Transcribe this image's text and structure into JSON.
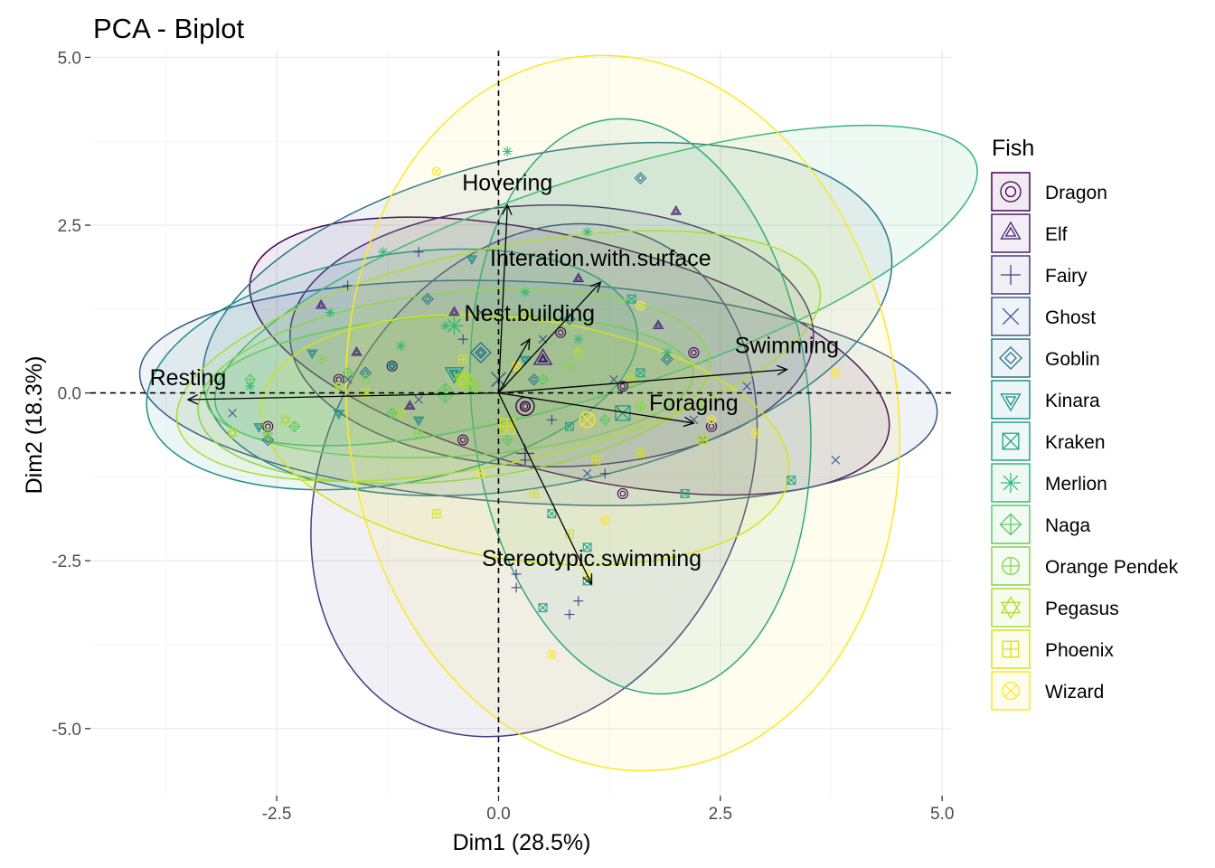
{
  "chart_data": {
    "type": "scatter",
    "title": "PCA - Biplot",
    "xlabel": "Dim1 (28.5%)",
    "ylabel": "Dim2 (18.3%)",
    "xlim": [
      -4.6,
      5.1
    ],
    "ylim": [
      -6.0,
      5.1
    ],
    "xticks": [
      -2.5,
      0.0,
      2.5,
      5.0
    ],
    "xtick_labels": [
      "-2.5",
      "0.0",
      "2.5",
      "5.0"
    ],
    "yticks": [
      -5.0,
      -2.5,
      0.0,
      2.5,
      5.0
    ],
    "ytick_labels": [
      "-5.0",
      "-2.5",
      "0.0",
      "2.5",
      "5.0"
    ],
    "grid": true,
    "reference_lines": {
      "x": 0,
      "y": 0,
      "style": "dashed"
    },
    "legend": {
      "title": "Fish",
      "placement": "right"
    },
    "variables": [
      {
        "name": "Resting",
        "x": -3.5,
        "y": -0.1
      },
      {
        "name": "Hovering",
        "x": 0.1,
        "y": 2.8
      },
      {
        "name": "Interation.with.surface",
        "x": 1.15,
        "y": 1.65
      },
      {
        "name": "Nest.building",
        "x": 0.35,
        "y": 0.8
      },
      {
        "name": "Swimming",
        "x": 3.25,
        "y": 0.35
      },
      {
        "name": "Foraging",
        "x": 2.2,
        "y": -0.45
      },
      {
        "name": "Stereotypic.swimming",
        "x": 1.05,
        "y": -2.85
      }
    ],
    "series": [
      {
        "name": "Dragon",
        "color": "#440154",
        "shape": "circle-in-circle",
        "ellipse": {
          "cx": 0.8,
          "cy": 0.55,
          "rx": 3.7,
          "ry": 1.75,
          "angle": -14
        },
        "centroid": [
          0.3,
          -0.2
        ],
        "points": [
          [
            -2.6,
            -0.5
          ],
          [
            -1.2,
            0.4
          ],
          [
            0.3,
            -0.2
          ],
          [
            1.4,
            0.1
          ],
          [
            2.4,
            -0.5
          ],
          [
            1.4,
            -1.5
          ],
          [
            0.7,
            0.9
          ],
          [
            -0.4,
            -0.7
          ],
          [
            2.2,
            0.6
          ],
          [
            -1.8,
            0.2
          ]
        ]
      },
      {
        "name": "Elf",
        "color": "#482173",
        "shape": "triangle-in-triangle",
        "ellipse": {
          "cx": 0.6,
          "cy": 0.85,
          "rx": 2.95,
          "ry": 1.95,
          "angle": 0
        },
        "centroid": [
          0.5,
          0.5
        ],
        "points": [
          [
            -1.6,
            0.6
          ],
          [
            -0.5,
            1.2
          ],
          [
            0.5,
            0.5
          ],
          [
            1.8,
            1.0
          ],
          [
            2.0,
            2.7
          ],
          [
            -1.0,
            -0.2
          ],
          [
            0.9,
            1.7
          ],
          [
            -2.0,
            1.3
          ]
        ]
      },
      {
        "name": "Fairy",
        "color": "#433E85",
        "shape": "plus",
        "ellipse": {
          "cx": 0.4,
          "cy": -1.3,
          "rx": 2.35,
          "ry": 4.0,
          "angle": -28
        },
        "centroid": [
          0.3,
          -0.9
        ],
        "points": [
          [
            0.2,
            -2.7
          ],
          [
            0.2,
            -2.9
          ],
          [
            0.9,
            -3.1
          ],
          [
            0.8,
            -3.3
          ],
          [
            -1.7,
            1.6
          ],
          [
            -0.4,
            0.8
          ],
          [
            0.6,
            -0.4
          ],
          [
            -2.6,
            -0.6
          ],
          [
            0.3,
            -1.0
          ],
          [
            1.2,
            -1.2
          ],
          [
            -0.9,
            2.1
          ]
        ]
      },
      {
        "name": "Ghost",
        "color": "#38598C",
        "shape": "x",
        "ellipse": {
          "cx": 0.45,
          "cy": 0.0,
          "rx": 4.5,
          "ry": 1.65,
          "angle": -3
        },
        "centroid": [
          0.0,
          0.2
        ],
        "points": [
          [
            3.8,
            -1.0
          ],
          [
            -3.0,
            -0.3
          ],
          [
            -1.7,
            0.2
          ],
          [
            0.5,
            0.8
          ],
          [
            2.2,
            -0.4
          ],
          [
            1.3,
            0.2
          ],
          [
            -0.9,
            -0.1
          ],
          [
            2.8,
            0.1
          ],
          [
            -0.2,
            1.2
          ],
          [
            1.0,
            -1.2
          ]
        ]
      },
      {
        "name": "Goblin",
        "color": "#2B748E",
        "shape": "diamond-in-diamond",
        "ellipse": {
          "cx": 0.55,
          "cy": 1.1,
          "rx": 3.95,
          "ry": 2.45,
          "angle": 12
        },
        "centroid": [
          -0.2,
          0.6
        ],
        "points": [
          [
            1.6,
            3.2
          ],
          [
            -1.5,
            0.3
          ],
          [
            -0.2,
            0.6
          ],
          [
            0.8,
            1.1
          ],
          [
            -2.6,
            -0.7
          ],
          [
            0.4,
            0.2
          ],
          [
            -0.8,
            1.4
          ],
          [
            1.9,
            0.5
          ]
        ]
      },
      {
        "name": "Kinara",
        "color": "#1F8F8A",
        "shape": "triangle-down-in-triangle",
        "ellipse": {
          "cx": -1.2,
          "cy": 0.35,
          "rx": 2.8,
          "ry": 1.7,
          "angle": 10
        },
        "centroid": [
          -0.5,
          0.3
        ],
        "points": [
          [
            -0.3,
            2.0
          ],
          [
            -1.2,
            0.4
          ],
          [
            -2.7,
            -0.5
          ],
          [
            -0.5,
            0.3
          ],
          [
            -1.8,
            -0.3
          ],
          [
            0.3,
            0.5
          ],
          [
            -2.1,
            0.6
          ],
          [
            -0.9,
            -0.4
          ]
        ]
      },
      {
        "name": "Kraken",
        "color": "#20A386",
        "shape": "square-x",
        "ellipse": {
          "cx": 1.6,
          "cy": -0.2,
          "rx": 1.9,
          "ry": 4.3,
          "angle": 6
        },
        "centroid": [
          1.4,
          -0.3
        ],
        "points": [
          [
            1.0,
            -2.8
          ],
          [
            0.5,
            -3.2
          ],
          [
            1.0,
            -2.3
          ],
          [
            3.3,
            -1.3
          ],
          [
            1.5,
            1.4
          ],
          [
            2.1,
            -1.5
          ],
          [
            0.8,
            -0.5
          ],
          [
            1.6,
            0.3
          ],
          [
            2.3,
            -0.7
          ],
          [
            0.6,
            -1.8
          ]
        ]
      },
      {
        "name": "Merlion",
        "color": "#35B779",
        "shape": "asterisk",
        "ellipse": {
          "cx": 1.1,
          "cy": 1.6,
          "rx": 4.5,
          "ry": 1.6,
          "angle": 18
        },
        "centroid": [
          -0.5,
          1.0
        ],
        "points": [
          [
            0.1,
            3.6
          ],
          [
            1.0,
            2.4
          ],
          [
            -1.3,
            2.1
          ],
          [
            -1.9,
            1.2
          ],
          [
            -0.6,
            1.0
          ],
          [
            0.9,
            0.8
          ],
          [
            -2.8,
            0.1
          ],
          [
            1.9,
            0.6
          ],
          [
            -1.1,
            0.7
          ],
          [
            0.3,
            1.5
          ]
        ]
      },
      {
        "name": "Naga",
        "color": "#5DC962",
        "shape": "diamond-plus",
        "ellipse": {
          "cx": -0.55,
          "cy": 0.1,
          "rx": 2.75,
          "ry": 1.05,
          "angle": 3
        },
        "centroid": [
          -0.6,
          0.0
        ],
        "points": [
          [
            -1.2,
            -0.3
          ],
          [
            -2.3,
            -0.5
          ],
          [
            -0.6,
            0.0
          ],
          [
            0.5,
            0.2
          ],
          [
            1.2,
            -0.4
          ],
          [
            -1.7,
            0.3
          ],
          [
            0.1,
            -0.7
          ],
          [
            -2.8,
            0.2
          ]
        ]
      },
      {
        "name": "Orange Pendek",
        "color": "#85D54A",
        "shape": "circle-plus",
        "ellipse": {
          "cx": -0.5,
          "cy": 0.1,
          "rx": 2.9,
          "ry": 1.4,
          "angle": 6
        },
        "centroid": [
          -0.3,
          0.1
        ],
        "points": [
          [
            -2.6,
            -0.6
          ],
          [
            -1.5,
            0.2
          ],
          [
            -0.3,
            0.1
          ],
          [
            0.8,
            0.4
          ],
          [
            1.6,
            -0.2
          ],
          [
            -0.9,
            -0.6
          ],
          [
            2.3,
            -0.2
          ],
          [
            -2.0,
            0.5
          ]
        ]
      },
      {
        "name": "Pegasus",
        "color": "#AADC32",
        "shape": "star-of-david",
        "ellipse": {
          "cx": 0.0,
          "cy": 0.55,
          "rx": 3.7,
          "ry": 1.6,
          "angle": 12
        },
        "centroid": [
          -0.4,
          0.2
        ],
        "points": [
          [
            -3.0,
            -0.6
          ],
          [
            -1.8,
            0.1
          ],
          [
            -0.4,
            0.2
          ],
          [
            0.9,
            0.6
          ],
          [
            -2.4,
            -0.4
          ],
          [
            0.3,
            1.2
          ],
          [
            -1.1,
            -0.3
          ],
          [
            1.5,
            0.2
          ]
        ]
      },
      {
        "name": "Phoenix",
        "color": "#D5E21A",
        "shape": "square-plus",
        "ellipse": {
          "cx": 0.3,
          "cy": -0.7,
          "rx": 3.0,
          "ry": 1.8,
          "angle": -8
        },
        "centroid": [
          0.1,
          -0.5
        ],
        "points": [
          [
            0.4,
            -1.5
          ],
          [
            1.1,
            -1.0
          ],
          [
            -0.7,
            -1.8
          ],
          [
            0.1,
            -0.5
          ],
          [
            2.3,
            -0.7
          ],
          [
            1.6,
            -0.9
          ],
          [
            -1.5,
            0.0
          ],
          [
            0.8,
            -2.1
          ],
          [
            -0.4,
            0.5
          ]
        ]
      },
      {
        "name": "Wizard",
        "color": "#FDE725",
        "shape": "circle-x",
        "ellipse": {
          "cx": 1.4,
          "cy": -0.3,
          "rx": 3.1,
          "ry": 5.35,
          "angle": 8
        },
        "centroid": [
          1.0,
          -0.4
        ],
        "points": [
          [
            -0.7,
            3.3
          ],
          [
            0.6,
            -3.9
          ],
          [
            1.0,
            -2.7
          ],
          [
            3.8,
            0.3
          ],
          [
            1.2,
            -1.9
          ],
          [
            2.4,
            -0.4
          ],
          [
            0.2,
            0.4
          ],
          [
            1.6,
            1.3
          ],
          [
            -0.2,
            -1.2
          ],
          [
            2.9,
            -0.6
          ]
        ]
      }
    ]
  }
}
